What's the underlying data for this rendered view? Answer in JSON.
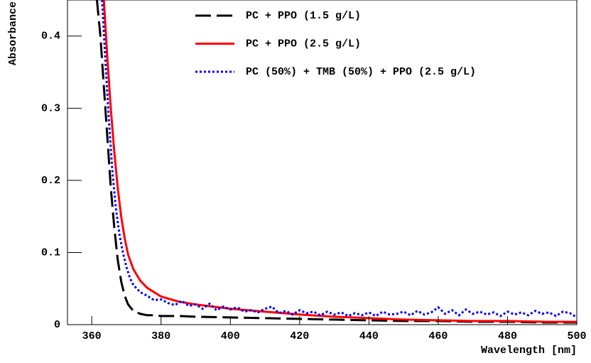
{
  "chart_data": {
    "type": "line",
    "x_label": "Wavelength [nm]",
    "y_label": "Absorbance",
    "xlim": [
      353,
      500
    ],
    "ylim": [
      0,
      0.45
    ],
    "xticks": [
      360,
      380,
      400,
      420,
      440,
      460,
      480,
      500
    ],
    "yticks": [
      0,
      0.1,
      0.2,
      0.3,
      0.4
    ],
    "legend": "top-right",
    "series": [
      {
        "name": "PC + PPO (1.5 g/L)",
        "color": "#000000",
        "dash": "dashed",
        "x": [
          361.5,
          362.5,
          363.5,
          364.5,
          365.5,
          366.5,
          367.5,
          368.5,
          369.5,
          370.5,
          372,
          374,
          376,
          378,
          380,
          385,
          390,
          400,
          410,
          420,
          430,
          440,
          450,
          460,
          470,
          480,
          490,
          500
        ],
        "values": [
          0.45,
          0.4,
          0.33,
          0.26,
          0.19,
          0.135,
          0.09,
          0.06,
          0.04,
          0.028,
          0.019,
          0.015,
          0.013,
          0.013,
          0.012,
          0.012,
          0.011,
          0.01,
          0.009,
          0.008,
          0.007,
          0.006,
          0.005,
          0.005,
          0.004,
          0.004,
          0.003,
          0.003
        ]
      },
      {
        "name": "PC + PPO (2.5 g/L)",
        "color": "#ff0000",
        "dash": "solid",
        "x": [
          363.5,
          364.5,
          365.5,
          366.5,
          367.5,
          368.5,
          369.5,
          370.5,
          372,
          374,
          376,
          378,
          380,
          385,
          390,
          395,
          400,
          410,
          420,
          430,
          440,
          450,
          460,
          470,
          480,
          490,
          500
        ],
        "values": [
          0.45,
          0.37,
          0.3,
          0.24,
          0.19,
          0.15,
          0.12,
          0.097,
          0.077,
          0.061,
          0.051,
          0.045,
          0.039,
          0.032,
          0.028,
          0.025,
          0.022,
          0.018,
          0.014,
          0.011,
          0.009,
          0.007,
          0.006,
          0.005,
          0.005,
          0.004,
          0.004
        ]
      },
      {
        "name": "PC (50%) + TMB (50%) + PPO (2.5 g/L)",
        "color": "#0000ff",
        "dash": "dotted",
        "x": [
          363,
          364,
          365,
          366,
          367,
          368,
          369,
          370,
          371,
          372,
          374,
          376,
          378,
          380,
          382,
          384,
          386,
          388,
          390,
          392,
          394,
          396,
          398,
          400,
          402,
          404,
          406,
          408,
          410,
          412,
          414,
          416,
          418,
          420,
          422,
          424,
          426,
          428,
          430,
          432,
          434,
          436,
          438,
          440,
          442,
          444,
          446,
          448,
          450,
          452,
          454,
          456,
          458,
          460,
          462,
          464,
          466,
          468,
          470,
          472,
          474,
          476,
          478,
          480,
          482,
          484,
          486,
          488,
          490,
          492,
          494,
          496,
          498,
          500
        ],
        "values": [
          0.45,
          0.36,
          0.28,
          0.21,
          0.16,
          0.125,
          0.1,
          0.08,
          0.065,
          0.055,
          0.045,
          0.04,
          0.034,
          0.035,
          0.03,
          0.027,
          0.033,
          0.026,
          0.028,
          0.022,
          0.029,
          0.02,
          0.025,
          0.021,
          0.024,
          0.018,
          0.02,
          0.017,
          0.022,
          0.025,
          0.016,
          0.019,
          0.014,
          0.02,
          0.016,
          0.018,
          0.013,
          0.018,
          0.014,
          0.017,
          0.012,
          0.016,
          0.013,
          0.017,
          0.012,
          0.018,
          0.014,
          0.015,
          0.018,
          0.013,
          0.019,
          0.014,
          0.017,
          0.024,
          0.015,
          0.02,
          0.013,
          0.021,
          0.015,
          0.018,
          0.014,
          0.017,
          0.012,
          0.018,
          0.014,
          0.017,
          0.013,
          0.019,
          0.015,
          0.017,
          0.012,
          0.018,
          0.016,
          0.01
        ]
      }
    ]
  }
}
